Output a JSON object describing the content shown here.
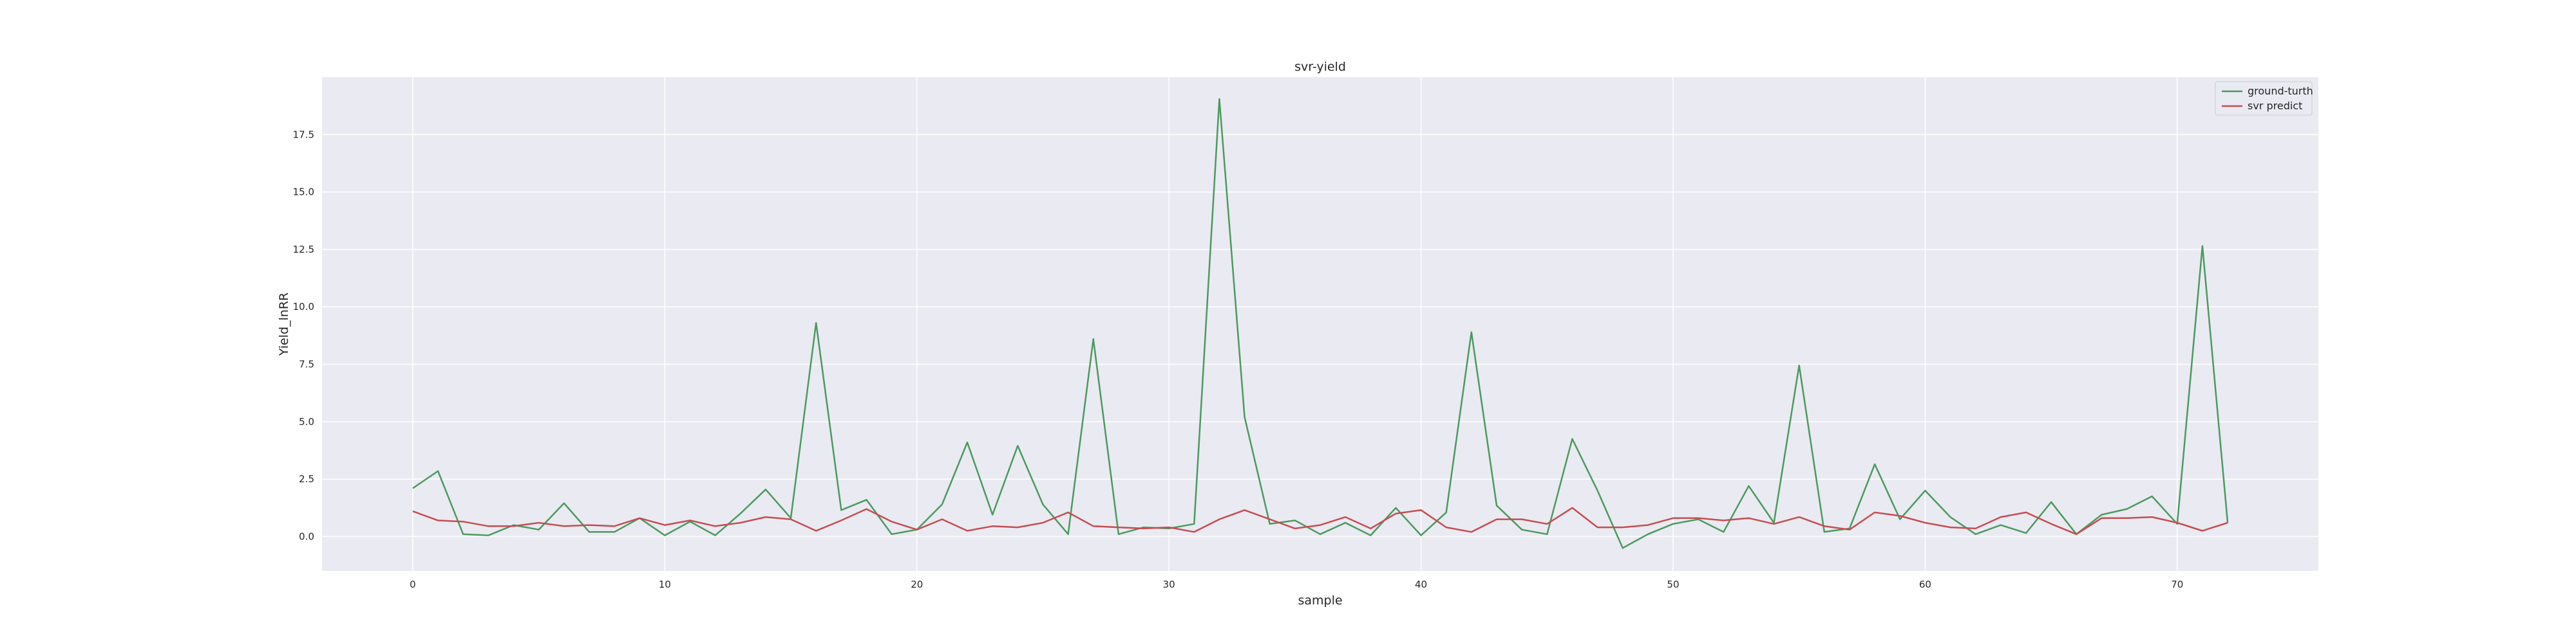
{
  "chart_data": {
    "type": "line",
    "title": "svr-yield",
    "xlabel": "sample",
    "ylabel": "Yield_lnRR",
    "xlim": [
      -3.6,
      75.6
    ],
    "ylim": [
      -1.5,
      20.0
    ],
    "xticks": [
      0,
      10,
      20,
      30,
      40,
      50,
      60,
      70
    ],
    "xtick_labels": [
      "0",
      "10",
      "20",
      "30",
      "40",
      "50",
      "60",
      "70"
    ],
    "yticks": [
      0.0,
      2.5,
      5.0,
      7.5,
      10.0,
      12.5,
      15.0,
      17.5
    ],
    "ytick_labels": [
      "0.0",
      "2.5",
      "5.0",
      "7.5",
      "10.0",
      "12.5",
      "15.0",
      "17.5"
    ],
    "grid": true,
    "legend_position": "top-right",
    "x": [
      0,
      1,
      2,
      3,
      4,
      5,
      6,
      7,
      8,
      9,
      10,
      11,
      12,
      13,
      14,
      15,
      16,
      17,
      18,
      19,
      20,
      21,
      22,
      23,
      24,
      25,
      26,
      27,
      28,
      29,
      30,
      31,
      32,
      33,
      34,
      35,
      36,
      37,
      38,
      39,
      40,
      41,
      42,
      43,
      44,
      45,
      46,
      47,
      48,
      49,
      50,
      51,
      52,
      53,
      54,
      55,
      56,
      57,
      58,
      59,
      60,
      61,
      62,
      63,
      64,
      65,
      66,
      67,
      68,
      69,
      70,
      71,
      72
    ],
    "series": [
      {
        "name": "ground-turth",
        "color": "#4c9a5f",
        "values": [
          2.1,
          2.85,
          0.1,
          0.05,
          0.5,
          0.3,
          1.45,
          0.2,
          0.2,
          0.8,
          0.05,
          0.65,
          0.05,
          1.0,
          2.05,
          0.8,
          9.3,
          1.15,
          1.6,
          0.1,
          0.3,
          1.4,
          4.1,
          0.95,
          3.95,
          1.4,
          0.1,
          8.6,
          0.1,
          0.4,
          0.35,
          0.55,
          19.05,
          5.2,
          0.55,
          0.7,
          0.1,
          0.6,
          0.05,
          1.25,
          0.05,
          1.05,
          8.9,
          1.35,
          0.3,
          0.1,
          4.25,
          2.0,
          -0.5,
          0.1,
          0.55,
          0.75,
          0.2,
          2.2,
          0.6,
          7.45,
          0.2,
          0.35,
          3.15,
          0.75,
          2.0,
          0.85,
          0.1,
          0.5,
          0.15,
          1.5,
          0.1,
          0.95,
          1.2,
          1.75,
          0.55,
          12.65,
          0.6
        ]
      },
      {
        "name": "svr predict",
        "color": "#c44e52",
        "values": [
          1.1,
          0.7,
          0.65,
          0.45,
          0.45,
          0.6,
          0.45,
          0.5,
          0.45,
          0.8,
          0.5,
          0.7,
          0.45,
          0.6,
          0.85,
          0.75,
          0.25,
          0.7,
          1.2,
          0.65,
          0.3,
          0.75,
          0.25,
          0.45,
          0.4,
          0.6,
          1.05,
          0.45,
          0.4,
          0.35,
          0.4,
          0.2,
          0.75,
          1.15,
          0.75,
          0.35,
          0.5,
          0.85,
          0.35,
          1.0,
          1.15,
          0.4,
          0.2,
          0.75,
          0.75,
          0.55,
          1.25,
          0.4,
          0.4,
          0.5,
          0.8,
          0.8,
          0.7,
          0.8,
          0.55,
          0.85,
          0.45,
          0.3,
          1.05,
          0.9,
          0.6,
          0.4,
          0.35,
          0.85,
          1.05,
          0.55,
          0.1,
          0.8,
          0.8,
          0.85,
          0.6,
          0.25,
          0.6
        ]
      }
    ]
  }
}
